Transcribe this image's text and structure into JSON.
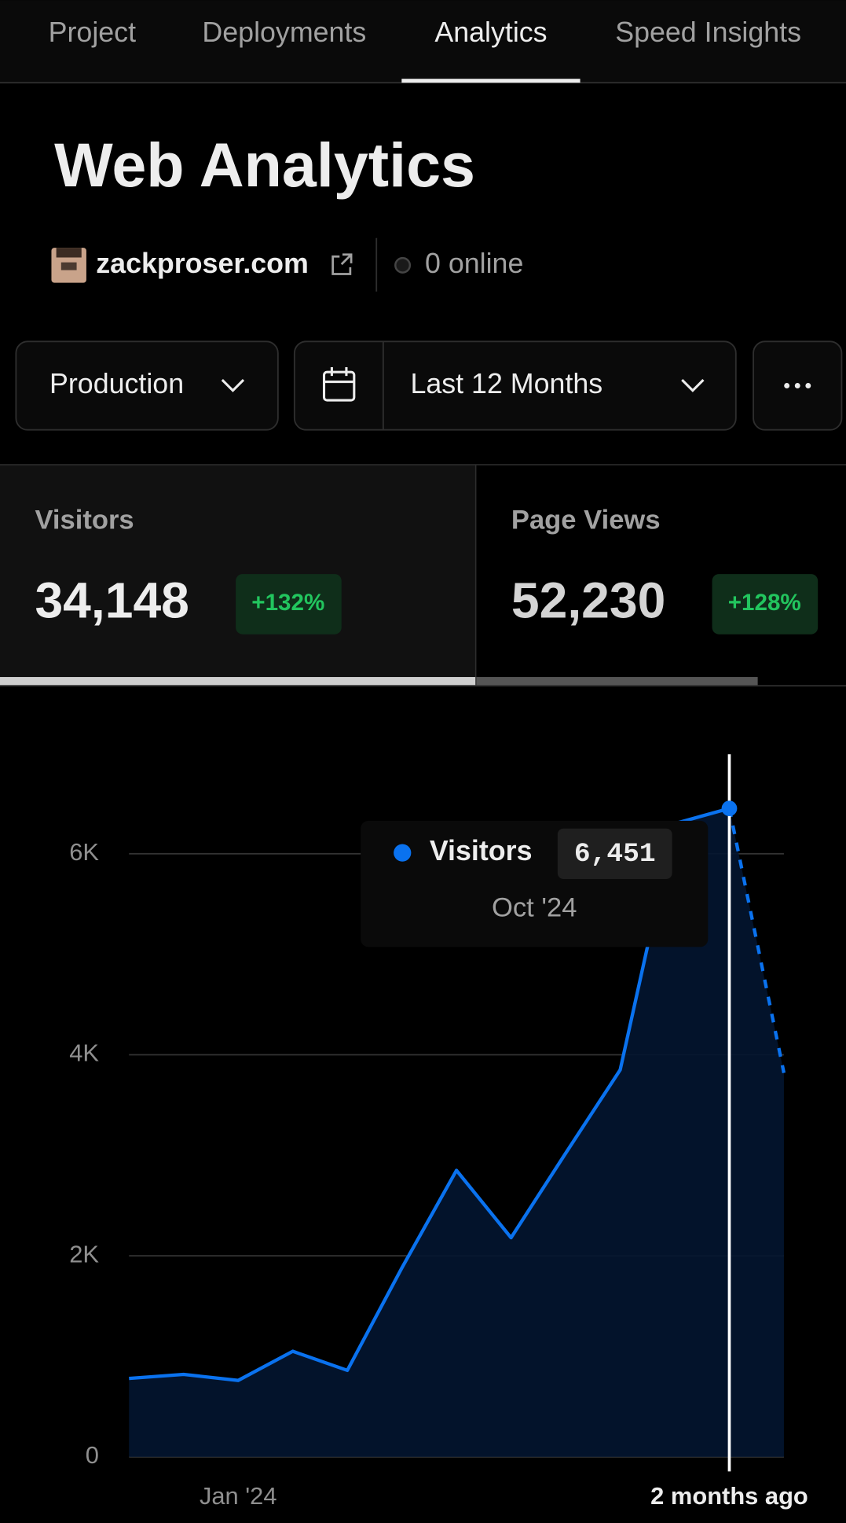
{
  "tabs": [
    {
      "label": "Project",
      "active": false
    },
    {
      "label": "Deployments",
      "active": false
    },
    {
      "label": "Analytics",
      "active": true
    },
    {
      "label": "Speed Insights",
      "active": false
    }
  ],
  "title": "Web Analytics",
  "site": {
    "domain": "zackproser.com",
    "online": "0 online"
  },
  "filters": {
    "environment": "Production",
    "range": "Last 12 Months"
  },
  "stats": [
    {
      "label": "Visitors",
      "value": "34,148",
      "change": "+132%",
      "selected": true
    },
    {
      "label": "Page Views",
      "value": "52,230",
      "change": "+128%",
      "selected": false
    }
  ],
  "chart_data": {
    "type": "area",
    "categories": [
      null,
      null,
      "Jan '24",
      null,
      null,
      null,
      null,
      null,
      null,
      null,
      null,
      "2 months ago",
      null
    ],
    "series": [
      {
        "name": "Visitors",
        "color": "#0a72ef",
        "values": [
          780,
          820,
          760,
          1050,
          860,
          1880,
          2850,
          2180,
          3020,
          3850,
          6300,
          6451,
          3820
        ],
        "value_labels": [
          null,
          null,
          null,
          null,
          null,
          null,
          null,
          null,
          null,
          null,
          null,
          "6,451",
          null
        ]
      }
    ],
    "hover_label": "Oct '24",
    "last_period_incomplete": true,
    "ylim": [
      0,
      7000
    ],
    "yticks": [
      0,
      {
        "value": 2000,
        "label": "2K"
      },
      {
        "value": 4000,
        "label": "4K"
      },
      {
        "value": 6000,
        "label": "6K"
      }
    ],
    "grid": true
  }
}
